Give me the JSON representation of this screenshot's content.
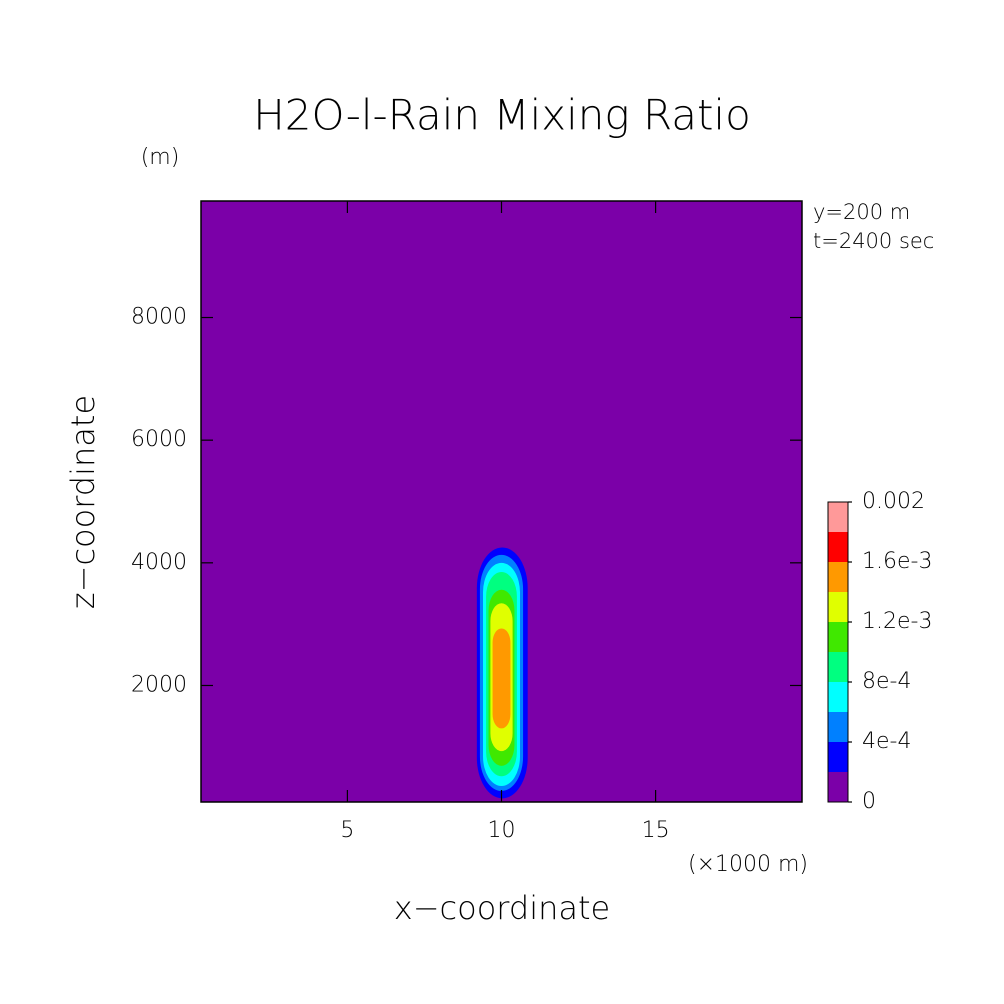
{
  "chart_data": {
    "type": "contour",
    "title": "H2O-l-Rain Mixing Ratio",
    "xlabel": "x−coordinate",
    "ylabel": "z−coordinate",
    "xunit": "(×1000 m)",
    "yunit": "(m)",
    "annotations": [
      "y=200 m",
      "t=2400 sec"
    ],
    "xlim": [
      0.25,
      19.75
    ],
    "ylim": [
      100,
      9900
    ],
    "xticks": [
      5,
      10,
      15
    ],
    "yticks": [
      2000,
      4000,
      6000,
      8000
    ],
    "levels": [
      0,
      0.0002,
      0.0004,
      0.0006,
      0.0008,
      0.001,
      0.0012,
      0.0014,
      0.0016,
      0.0018,
      0.002
    ],
    "colors": [
      "#7b00a8",
      "#0000ff",
      "#0080ff",
      "#00ffff",
      "#00ff80",
      "#40e800",
      "#e0ff00",
      "#ff9900",
      "#ff0000",
      "#ff9999"
    ],
    "cticks": [
      0,
      {
        "value": 0.0004,
        "label": "4e-4"
      },
      {
        "value": 0.0008,
        "label": "8e-4"
      },
      {
        "value": 0.0012,
        "label": "1.2e-3"
      },
      {
        "value": 0.0016,
        "label": "1.6e-3"
      },
      0.002
    ],
    "contours": [
      {
        "level": 0.0002,
        "xrange": [
          9.2,
          10.85
        ],
        "zrange": [
          160,
          4250
        ]
      },
      {
        "level": 0.0004,
        "xrange": [
          9.3,
          10.7
        ],
        "zrange": [
          280,
          4130
        ]
      },
      {
        "level": 0.0006,
        "xrange": [
          9.4,
          10.6
        ],
        "zrange": [
          360,
          4000
        ]
      },
      {
        "level": 0.0008,
        "xrange": [
          9.5,
          10.5
        ],
        "zrange": [
          520,
          3850
        ]
      },
      {
        "level": 0.001,
        "xrange": [
          9.58,
          10.42
        ],
        "zrange": [
          690,
          3560
        ]
      },
      {
        "level": 0.0012,
        "xrange": [
          9.64,
          10.36
        ],
        "zrange": [
          930,
          3340
        ]
      },
      {
        "level": 0.0014,
        "xrange": [
          9.71,
          10.29
        ],
        "zrange": [
          1300,
          2930
        ]
      }
    ]
  }
}
